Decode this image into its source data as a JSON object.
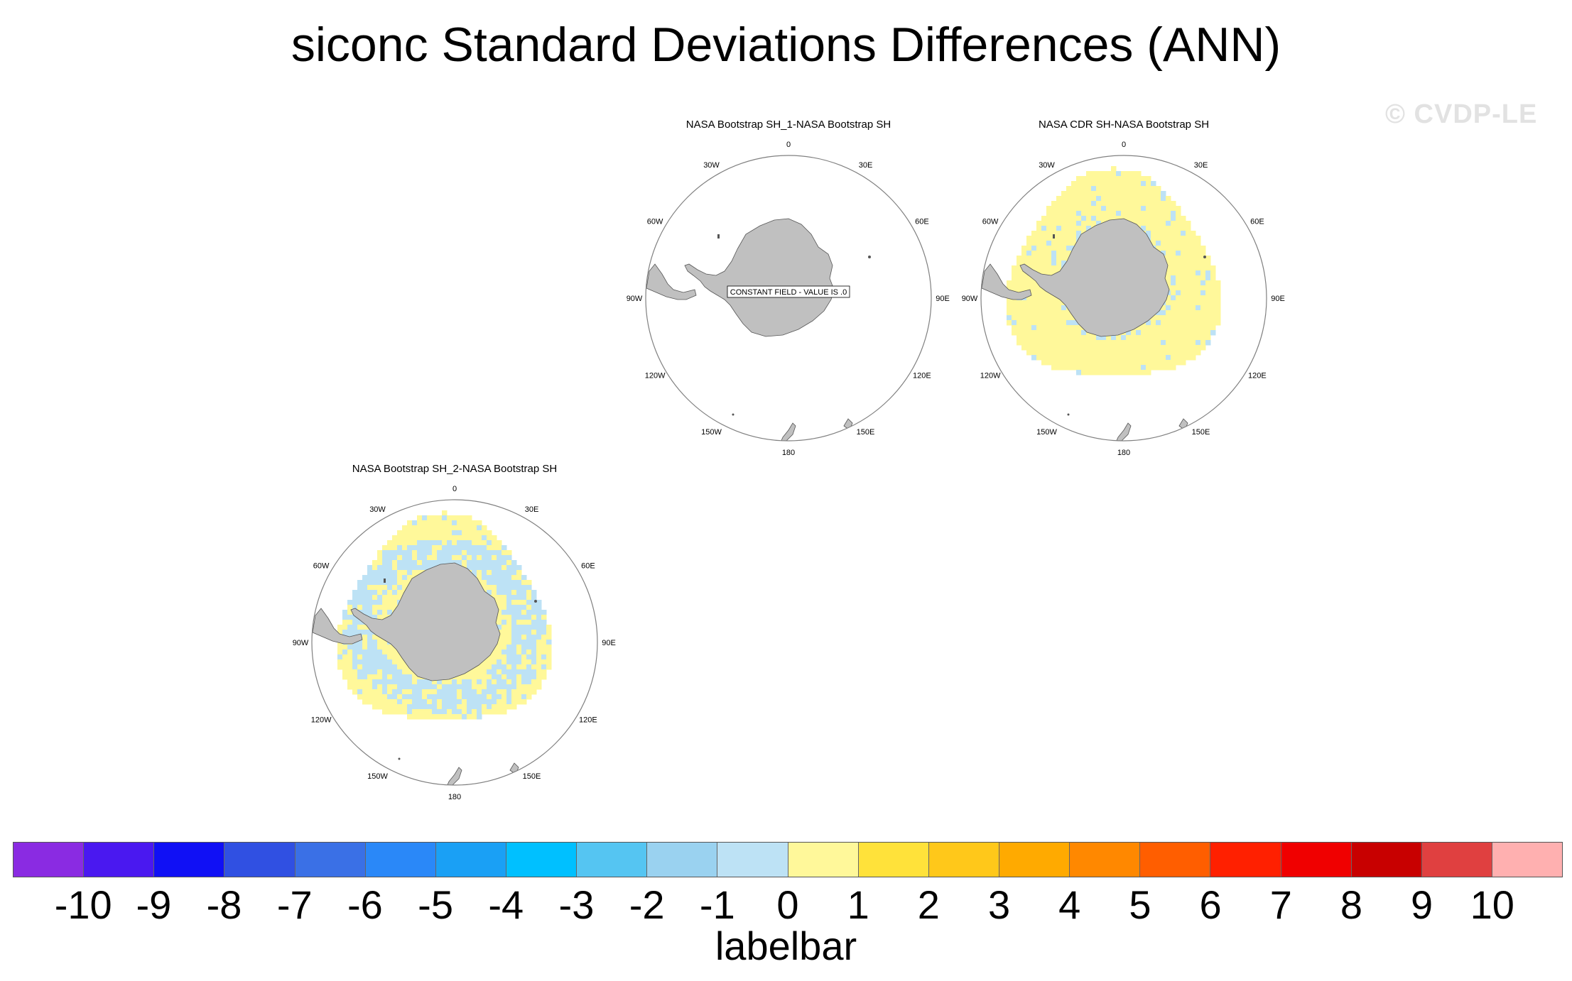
{
  "title": "siconc Standard Deviations Differences (ANN)",
  "watermark": "© CVDP-LE",
  "panels": [
    {
      "id": "sh1",
      "title": "NASA Bootstrap SH_1-NASA Bootstrap SH",
      "pattern": "none",
      "constant_field_label": "CONSTANT FIELD - VALUE IS .0"
    },
    {
      "id": "cdr",
      "title": "NASA CDR SH-NASA Bootstrap SH",
      "pattern": "mostly-positive",
      "constant_field_label": ""
    },
    {
      "id": "sh2",
      "title": "NASA Bootstrap SH_2-NASA Bootstrap SH",
      "pattern": "mixed",
      "constant_field_label": ""
    }
  ],
  "longitude_labels": [
    "0",
    "30E",
    "60E",
    "90E",
    "120E",
    "150E",
    "180",
    "150W",
    "120W",
    "90W",
    "60W",
    "30W"
  ],
  "labelbar": {
    "title": "labelbar",
    "levels": [
      "-10",
      "-9",
      "-8",
      "-7",
      "-6",
      "-5",
      "-4",
      "-3",
      "-2",
      "-1",
      "0",
      "1",
      "2",
      "3",
      "4",
      "5",
      "6",
      "7",
      "8",
      "9",
      "10"
    ],
    "colors": [
      "#8a2be2",
      "#4a18f0",
      "#1010f5",
      "#3050e2",
      "#3a70e6",
      "#2a88f8",
      "#1aa0f5",
      "#00c0ff",
      "#55c5f2",
      "#9ad2f0",
      "#bde2f5",
      "#fff89a",
      "#ffe23a",
      "#ffc81a",
      "#ffaa00",
      "#ff8800",
      "#ff5e00",
      "#ff2000",
      "#f00000",
      "#c80000",
      "#e04040",
      "#ffb0b0"
    ]
  },
  "colors": {
    "land": "#c0c0c0",
    "positive_small": "#fff89a",
    "negative_small": "#bde2f5",
    "map_border": "#808080"
  }
}
